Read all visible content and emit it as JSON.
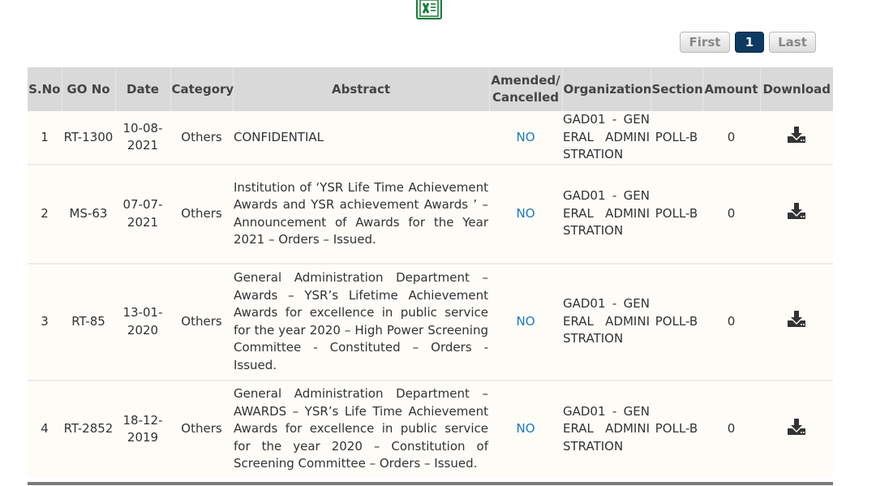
{
  "pager": {
    "first": "First",
    "current": "1",
    "last": "Last"
  },
  "table": {
    "headers": {
      "sno": "S.No",
      "go_no": "GO No",
      "date": "Date",
      "category": "Category",
      "abstract": "Abstract",
      "amended_line1": "Amended/",
      "amended_line2": "Cancelled",
      "organization": "Organization",
      "section": "Section",
      "amount": "Amount",
      "download": "Download"
    },
    "rows": [
      {
        "sno": "1",
        "go_no": "RT-1300",
        "date_line1": "10-08-",
        "date_line2": "2021",
        "category": "Others",
        "abstract": "CONFIDENTIAL",
        "amended": "NO",
        "organization": "GAD01 - GENERAL ADMINISTRATION",
        "section": "POLL-B",
        "amount": "0"
      },
      {
        "sno": "2",
        "go_no": "MS-63",
        "date_line1": "07-07-",
        "date_line2": "2021",
        "category": "Others",
        "abstract": "Institution of ‘YSR Life Time Achievement Awards and YSR achievement Awards ’ – Announcement of Awards for the Year 2021 – Orders – Issued.",
        "amended": "NO",
        "organization": "GAD01 - GENERAL ADMINISTRATION",
        "section": "POLL-B",
        "amount": "0"
      },
      {
        "sno": "3",
        "go_no": "RT-85",
        "date_line1": "13-01-",
        "date_line2": "2020",
        "category": "Others",
        "abstract": "General Administration Department – Awards – YSR’s Lifetime Achievement Awards for excellence in public service for the year 2020 – High Power Screening Committee - Constituted – Orders - Issued.",
        "amended": "NO",
        "organization": "GAD01 - GENERAL ADMINISTRATION",
        "section": "POLL-B",
        "amount": "0"
      },
      {
        "sno": "4",
        "go_no": "RT-2852",
        "date_line1": "18-12-",
        "date_line2": "2019",
        "category": "Others",
        "abstract": "General Administration Department – AWARDS – YSR’s Life Time Achievement Awards for excellence in public service for the year 2020 – Constitution of Screening Committee – Orders – Issued.",
        "amended": "NO",
        "organization": "GAD01 - GENERAL ADMINISTRATION",
        "section": "POLL-B",
        "amount": "0"
      }
    ]
  },
  "icons": {
    "export": "excel-icon",
    "download": "download-icon"
  },
  "colors": {
    "header_bg": "#d9d9d9",
    "current_page": "#0b3b63",
    "amended_text": "#1c79c0",
    "row_bg": "#fdfcf7"
  }
}
